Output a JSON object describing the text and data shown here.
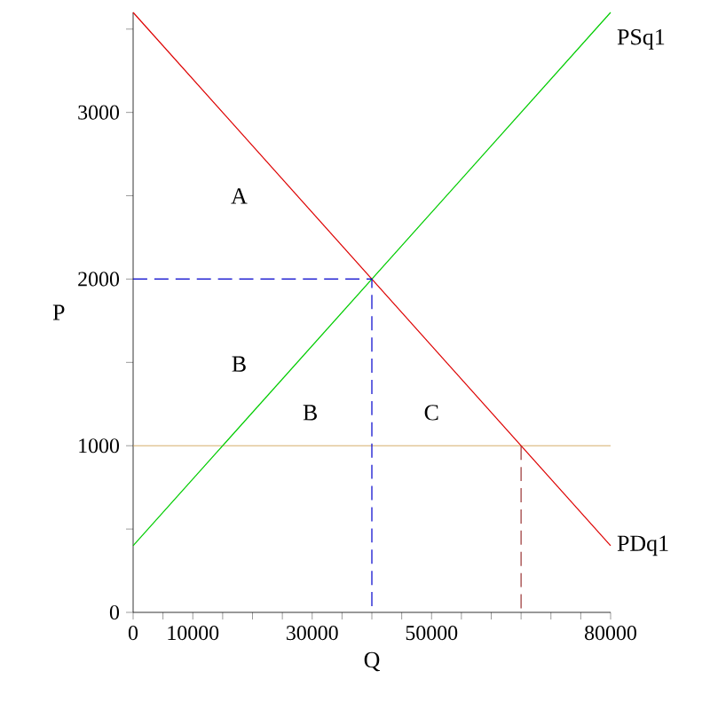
{
  "chart_data": {
    "type": "line",
    "xlabel": "Q",
    "ylabel": "P",
    "xlim": [
      0,
      80000
    ],
    "ylim": [
      0,
      3600
    ],
    "xticks": [
      0,
      {
        "value": 5000,
        "label": null
      },
      10000,
      {
        "value": 15000,
        "label": null
      },
      {
        "value": 20000,
        "label": null
      },
      {
        "value": 25000,
        "label": null
      },
      30000,
      {
        "value": 35000,
        "label": null
      },
      {
        "value": 40000,
        "label": null
      },
      {
        "value": 45000,
        "label": null
      },
      50000,
      {
        "value": 55000,
        "label": null
      },
      {
        "value": 60000,
        "label": null
      },
      {
        "value": 65000,
        "label": null
      },
      {
        "value": 70000,
        "label": null
      },
      {
        "value": 75000,
        "label": null
      },
      80000
    ],
    "yticks": [
      0,
      {
        "value": 500,
        "label": null
      },
      1000,
      {
        "value": 1500,
        "label": null
      },
      2000,
      {
        "value": 2500,
        "label": null
      },
      3000,
      {
        "value": 3500,
        "label": null
      }
    ],
    "grid": false,
    "legend": false,
    "marker": "none",
    "line_style": "solid",
    "series": [
      {
        "name": "PDq1",
        "color": "#dd0000",
        "x": [
          0,
          80000
        ],
        "values": [
          3600,
          400
        ]
      },
      {
        "name": "PSq1",
        "color": "#00cc00",
        "x": [
          0,
          80000
        ],
        "values": [
          400,
          3600
        ]
      },
      {
        "color": "#0000cc",
        "line_style": "dashed",
        "x": [
          0,
          40000,
          40000
        ],
        "values": [
          2000,
          2000,
          0
        ]
      },
      {
        "color": "#993333",
        "line_style": "dashed",
        "x": [
          65000,
          65000
        ],
        "values": [
          1000,
          0
        ]
      }
    ],
    "ref_lines": [
      {
        "axis": "y",
        "value": 1000,
        "color": "#cc9944"
      }
    ],
    "annotations": [
      "A",
      "B",
      "B",
      "C"
    ]
  }
}
